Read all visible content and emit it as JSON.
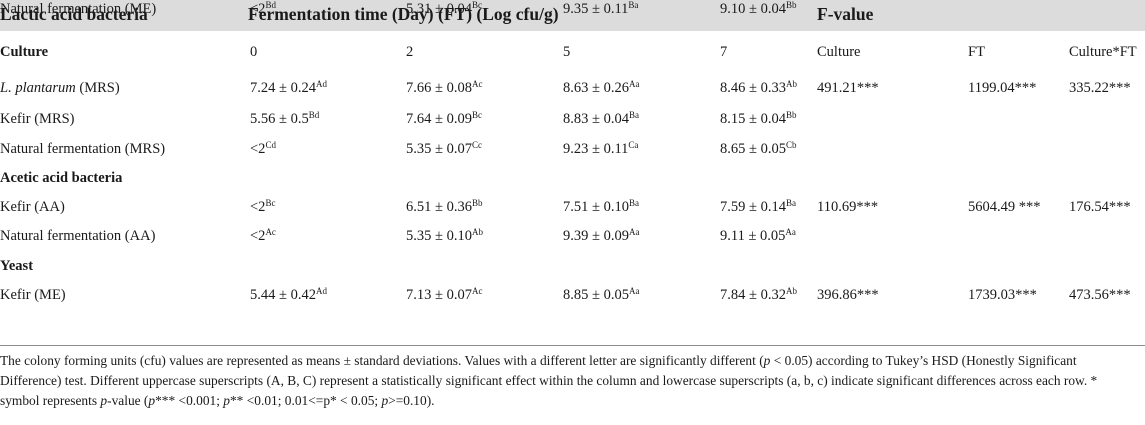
{
  "header": {
    "col1": "Lactic acid bacteria",
    "col2": "Fermentation time (Day) (FT) (Log cfu/g)",
    "col3": "F-value"
  },
  "subheader": {
    "label": "Culture",
    "days": [
      "0",
      "2",
      "5",
      "7"
    ],
    "fvals": [
      "Culture",
      "FT",
      "Culture*FT"
    ]
  },
  "rows": [
    {
      "label": "(MRS)",
      "italic_label": "L. plantarum",
      "cells": [
        {
          "v": "7.24 ± 0.24",
          "s": "Ad"
        },
        {
          "v": "7.66 ± 0.08",
          "s": "Ac"
        },
        {
          "v": "8.63 ± 0.26",
          "s": "Aa"
        },
        {
          "v": "8.46 ± 0.33",
          "s": "Ab"
        }
      ],
      "f": [
        "491.21***",
        "1199.04***",
        "335.22***"
      ]
    },
    {
      "label": "Kefir (MRS)",
      "cells": [
        {
          "v": "5.56 ± 0.5",
          "s": "Bd"
        },
        {
          "v": "7.64 ± 0.09",
          "s": "Bc"
        },
        {
          "v": "8.83 ± 0.04",
          "s": "Ba"
        },
        {
          "v": "8.15 ± 0.04",
          "s": "Bb"
        }
      ],
      "f": [
        "",
        "",
        ""
      ]
    },
    {
      "label": "Natural fermentation (MRS)",
      "cells": [
        {
          "v": "<2",
          "s": "Cd"
        },
        {
          "v": "5.35 ± 0.07",
          "s": "Cc"
        },
        {
          "v": "9.23 ± 0.11",
          "s": "Ca"
        },
        {
          "v": "8.65 ± 0.05",
          "s": "Cb"
        }
      ],
      "f": [
        "",
        "",
        ""
      ]
    },
    {
      "section": "Acetic acid bacteria"
    },
    {
      "label": "Kefir (AA)",
      "cells": [
        {
          "v": "<2",
          "s": "Bc"
        },
        {
          "v": "6.51 ± 0.36",
          "s": "Bb"
        },
        {
          "v": "7.51 ± 0.10",
          "s": "Ba"
        },
        {
          "v": "7.59 ± 0.14",
          "s": "Ba"
        }
      ],
      "f": [
        "110.69***",
        "5604.49 ***",
        "176.54***"
      ]
    },
    {
      "label": "Natural fermentation (AA)",
      "cells": [
        {
          "v": "<2",
          "s": "Ac"
        },
        {
          "v": "5.35 ± 0.10",
          "s": "Ab"
        },
        {
          "v": "9.39 ± 0.09",
          "s": "Aa"
        },
        {
          "v": "9.11 ± 0.05",
          "s": "Aa"
        }
      ],
      "f": [
        "",
        "",
        ""
      ]
    },
    {
      "section": "Yeast"
    },
    {
      "label": "Kefir (ME)",
      "cells": [
        {
          "v": "5.44 ± 0.42",
          "s": "Ad"
        },
        {
          "v": "7.13 ± 0.07",
          "s": "Ac"
        },
        {
          "v": "8.85 ± 0.05",
          "s": "Aa"
        },
        {
          "v": "7.84 ± 0.32",
          "s": "Ab"
        }
      ],
      "f": [
        "396.86***",
        "1739.03***",
        "473.56***"
      ]
    },
    {
      "label": "Natural fermentation (ME)",
      "cells": [
        {
          "v": "<2",
          "s": "Bd"
        },
        {
          "v": "5.31 ± 0.04",
          "s": "Bc"
        },
        {
          "v": "9.35 ± 0.11",
          "s": "Ba"
        },
        {
          "v": "9.10 ± 0.04",
          "s": "Bb"
        }
      ],
      "f": [
        "",
        "",
        ""
      ]
    }
  ],
  "footnote": {
    "a": "The colony forming units (cfu) values are represented as means ± standard deviations. Values with a different letter are significantly different (",
    "p1": "p",
    "b": " < 0.05) according to Tukey’s HSD (Honestly Significant Difference) test. Different uppercase superscripts (A, B, C) represent a statistically significant effect within the column and lowercase superscripts (a, b, c) indicate significant differences across each row. * symbol represents ",
    "p2": "p",
    "c": "-value (",
    "p3": "p",
    "d": "*** <0.001; ",
    "p4": "p",
    "e": "** <0.01; 0.01<=p* < 0.05; ",
    "p5": "p",
    "f": ">=0.10)."
  }
}
